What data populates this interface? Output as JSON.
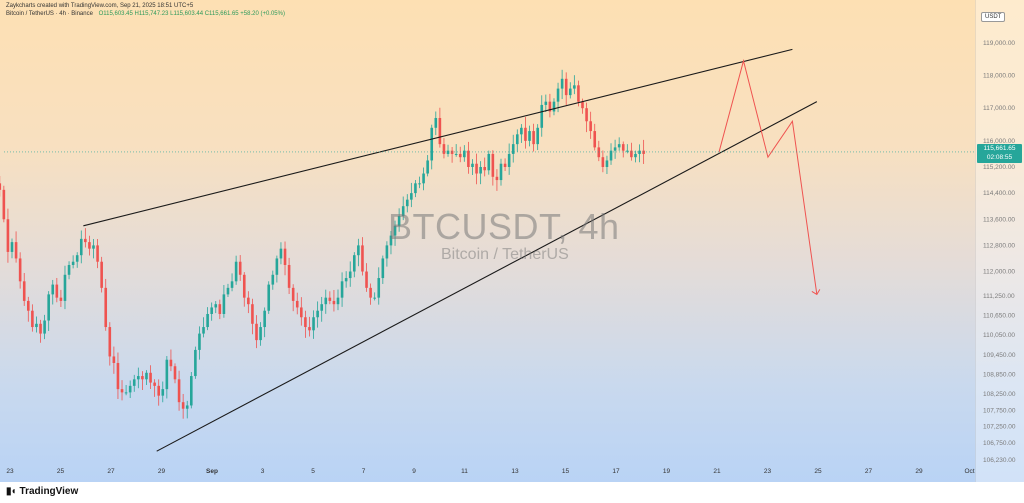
{
  "header": {
    "text": "Zaykcharts created with TradingView.com, Sep 21, 2025 18:51 UTC+5",
    "symbol_line": "Bitcoin / TetherUS · 4h · Binance",
    "ohlc": "O115,603.45 H115,747.23 L115,603.44 C115,661.65 +58.20 (+0.05%)"
  },
  "watermark": {
    "symbol": "BTCUSDT, 4h",
    "name": "Bitcoin / TetherUS"
  },
  "currency": "USDT",
  "last_price": {
    "value": "115,661.65",
    "countdown": "02:08:55",
    "color": "#26a69a"
  },
  "branding": {
    "logo": "TradingView"
  },
  "colors": {
    "up": "#26a69a",
    "down": "#ef5350",
    "trendline": "#1a1a1a",
    "projection": "#ef5350"
  },
  "chart_data": {
    "type": "candlestick",
    "ylim": [
      106230,
      119700
    ],
    "price_ticks": [
      {
        "label": "119,000.00",
        "value": 119000
      },
      {
        "label": "118,000.00",
        "value": 118000
      },
      {
        "label": "117,000.00",
        "value": 117000
      },
      {
        "label": "116,000.00",
        "value": 116000
      },
      {
        "label": "115,200.00",
        "value": 115200
      },
      {
        "label": "114,400.00",
        "value": 114400
      },
      {
        "label": "113,600.00",
        "value": 113600
      },
      {
        "label": "112,800.00",
        "value": 112800
      },
      {
        "label": "112,000.00",
        "value": 112000
      },
      {
        "label": "111,250.00",
        "value": 111250
      },
      {
        "label": "110,650.00",
        "value": 110650
      },
      {
        "label": "110,050.00",
        "value": 110050
      },
      {
        "label": "109,450.00",
        "value": 109450
      },
      {
        "label": "108,850.00",
        "value": 108850
      },
      {
        "label": "108,250.00",
        "value": 108250
      },
      {
        "label": "107,750.00",
        "value": 107750
      },
      {
        "label": "107,250.00",
        "value": 107250
      },
      {
        "label": "106,750.00",
        "value": 106750
      },
      {
        "label": "106,230.00",
        "value": 106230
      }
    ],
    "time_ticks": [
      "23",
      "25",
      "27",
      "29",
      "Sep",
      "3",
      "5",
      "7",
      "9",
      "11",
      "13",
      "15",
      "17",
      "19",
      "21",
      "23",
      "25",
      "27",
      "29",
      "Oct"
    ],
    "time_ticks_bold": [
      "Sep"
    ],
    "candles_count": 168,
    "closes": [
      116400,
      116900,
      116200,
      115600,
      115300,
      115100,
      114900,
      114800,
      114700,
      114500,
      113600,
      112600,
      112900,
      112400,
      111700,
      111100,
      110800,
      110300,
      110400,
      110100,
      110500,
      111300,
      111600,
      111200,
      111100,
      111900,
      112200,
      112300,
      112500,
      113000,
      112900,
      112700,
      112800,
      112300,
      111500,
      110300,
      109400,
      109200,
      108400,
      108300,
      108300,
      108500,
      108700,
      108800,
      108700,
      108900,
      108600,
      108500,
      108200,
      108400,
      109300,
      109100,
      108700,
      108000,
      107800,
      107900,
      108800,
      109600,
      110100,
      110300,
      110700,
      110900,
      111000,
      110700,
      111300,
      111500,
      111700,
      112300,
      111900,
      111200,
      111000,
      110400,
      109900,
      110300,
      110800,
      111600,
      111900,
      112400,
      112700,
      112200,
      111500,
      111100,
      110900,
      110600,
      110300,
      110200,
      110600,
      110800,
      111000,
      111200,
      111100,
      111000,
      111200,
      111700,
      111800,
      112000,
      112500,
      112800,
      112000,
      111500,
      111200,
      111200,
      111800,
      112400,
      112800,
      113100,
      113400,
      113700,
      114000,
      114200,
      114400,
      114700,
      114700,
      115000,
      115400,
      116400,
      116700,
      115900,
      115600,
      115700,
      115600,
      115600,
      115500,
      115700,
      115200,
      115300,
      115000,
      115200,
      115100,
      115600,
      114900,
      114800,
      115300,
      115200,
      115600,
      115900,
      116200,
      116400,
      116000,
      116300,
      115900,
      116400,
      117100,
      117200,
      116900,
      117200,
      117600,
      117900,
      117400,
      117600,
      117700,
      117200,
      117000,
      116600,
      116300,
      115800,
      115500,
      115200,
      115400,
      115700,
      115800,
      115900,
      115700,
      115700,
      115500,
      115600,
      115700,
      115600
    ],
    "trendlines": [
      {
        "name": "upper",
        "from": {
          "t": "Aug 26",
          "price": 113400
        },
        "to": {
          "t": "Sep 24",
          "price": 118800
        }
      },
      {
        "name": "lower",
        "from": {
          "t": "Aug 29",
          "price": 106500
        },
        "to": {
          "t": "Sep 25",
          "price": 117200
        }
      }
    ],
    "projection": [
      {
        "t": "Sep 21",
        "price": 115661
      },
      {
        "t": "Sep 22",
        "price": 118450
      },
      {
        "t": "Sep 23",
        "price": 115500
      },
      {
        "t": "Sep 24",
        "price": 116600
      },
      {
        "t": "Sep 25",
        "price": 111300
      }
    ]
  }
}
